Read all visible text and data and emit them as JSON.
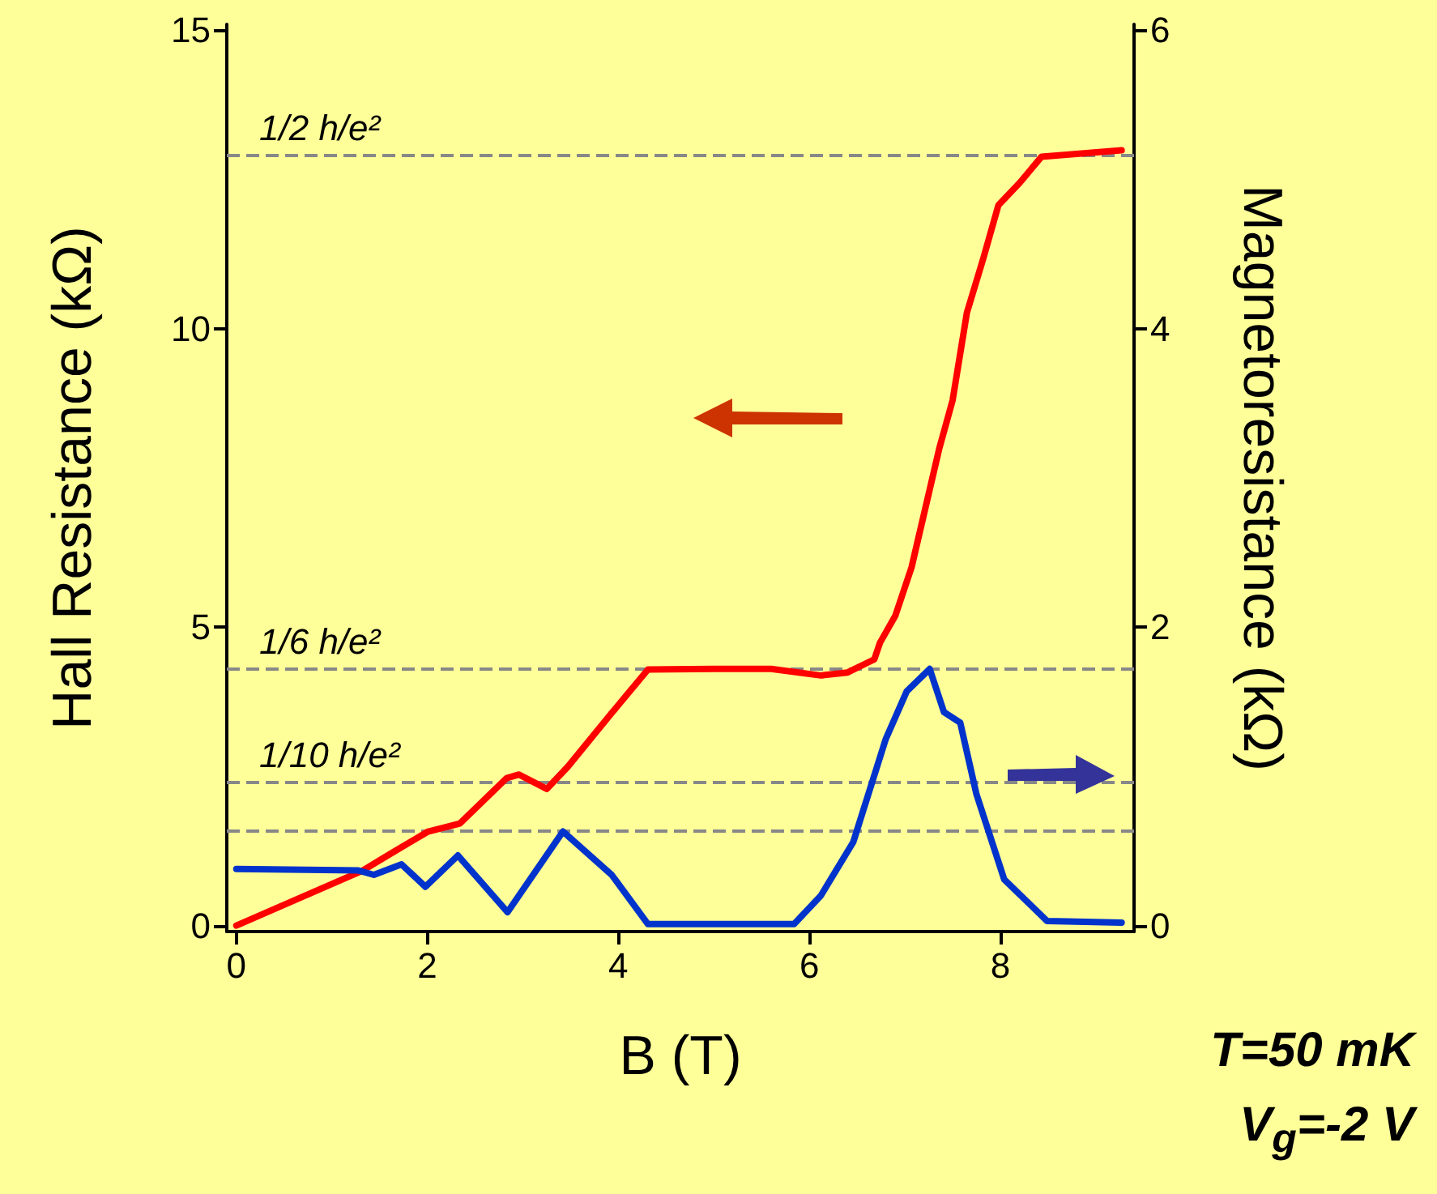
{
  "chart_data": {
    "type": "line",
    "xlabel": "B (T)",
    "ylabel": "Hall Resistance (kΩ)",
    "y2label": "Magnetoresistance (kΩ)",
    "xlim": [
      -0.1,
      9.4
    ],
    "xticks": [
      0,
      2,
      4,
      6,
      8
    ],
    "ylim": [
      -0.1,
      15.1
    ],
    "yticks": [
      0,
      5,
      10,
      15
    ],
    "y2lim": [
      -0.04,
      6.04
    ],
    "y2ticks": [
      0,
      2,
      4,
      6
    ],
    "grid": false,
    "marker": "none",
    "line_style": "solid",
    "series": [
      {
        "color": "#ff0000",
        "x": [
          0,
          1.32,
          1.61,
          2.0,
          2.34,
          2.83,
          2.96,
          3.25,
          3.47,
          3.93,
          4.31,
          5.0,
          5.6,
          6.12,
          6.4,
          6.68,
          6.74,
          6.9,
          7.07,
          7.36,
          7.5,
          7.65,
          7.82,
          7.98,
          8.2,
          8.43,
          9.27
        ],
        "values": [
          0,
          0.92,
          1.2,
          1.57,
          1.71,
          2.47,
          2.53,
          2.29,
          2.66,
          3.56,
          4.29,
          4.3,
          4.3,
          4.19,
          4.24,
          4.46,
          4.74,
          5.19,
          6.0,
          7.99,
          8.8,
          10.27,
          11.17,
          12.07,
          12.44,
          12.88,
          12.99
        ]
      },
      {
        "color": "#0033cc",
        "axis": "y2",
        "x": [
          0,
          1.27,
          1.44,
          1.73,
          1.98,
          2.32,
          2.84,
          3.42,
          3.93,
          4.31,
          5.0,
          5.84,
          6.12,
          6.46,
          6.8,
          7.02,
          7.26,
          7.41,
          7.58,
          7.75,
          8.04,
          8.49,
          9.27
        ],
        "values": [
          0.38,
          0.37,
          0.34,
          0.41,
          0.26,
          0.47,
          0.09,
          0.63,
          0.34,
          0.01,
          0.01,
          0.01,
          0.2,
          0.56,
          1.25,
          1.57,
          1.72,
          1.43,
          1.36,
          0.88,
          0.31,
          0.03,
          0.02
        ]
      }
    ],
    "ref_lines": [
      {
        "axis": "y",
        "value": 12.9,
        "label": "1/2 h/e²",
        "color": "#888888",
        "line_style": "dashed"
      },
      {
        "axis": "y",
        "value": 4.3,
        "label": "1/6 h/e²",
        "color": "#888888",
        "line_style": "dashed"
      },
      {
        "axis": "y",
        "value": 2.4,
        "label": "1/10 h/e²",
        "color": "#888888",
        "line_style": "dashed"
      },
      {
        "axis": "y",
        "value": 1.6,
        "color": "#888888",
        "line_style": "dashed"
      }
    ],
    "annotations": [
      "T=50 mK",
      "V$_{g}$=-2 V"
    ]
  }
}
